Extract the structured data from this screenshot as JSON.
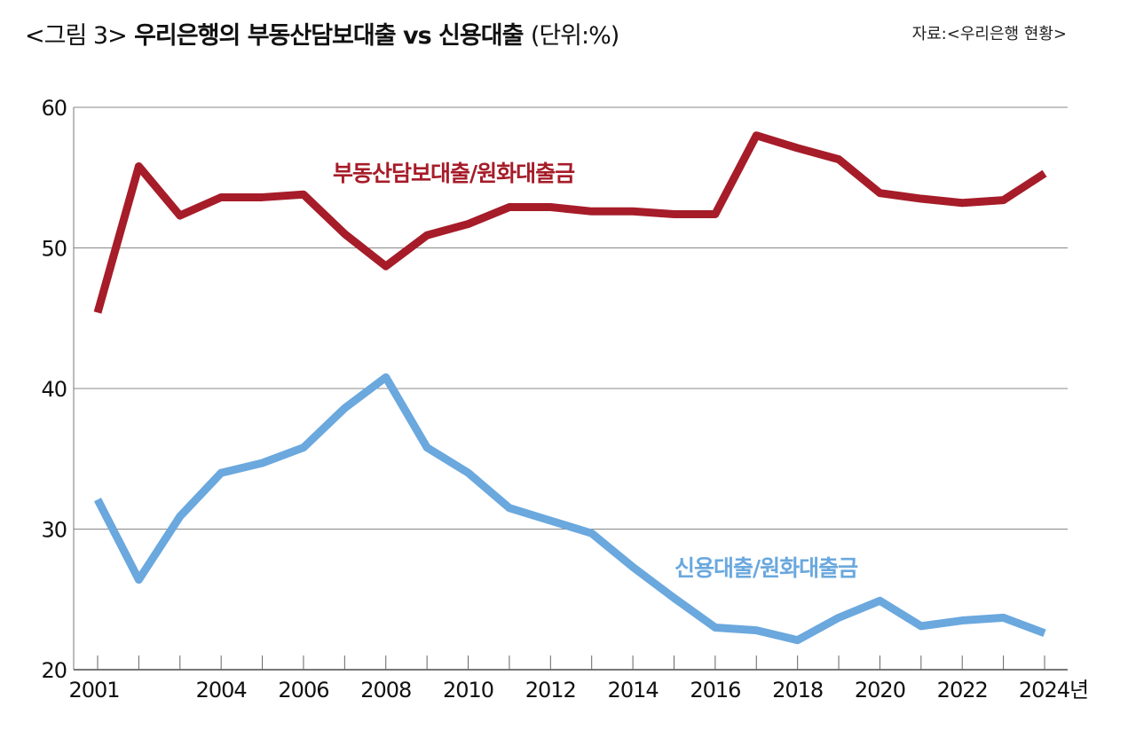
{
  "title": {
    "prefix": "<그림 3>",
    "main": "우리은행의 부동산담보대출 vs 신용대출",
    "unit": "(단위:%)"
  },
  "source": "자료:<우리은행 현황>",
  "chart_data": {
    "type": "line",
    "title": "우리은행의 부동산담보대출 vs 신용대출",
    "ylabel": "",
    "xlabel": "",
    "x_unit_suffix": "년",
    "ylim": [
      20,
      60
    ],
    "y_ticks": [
      20,
      30,
      40,
      50,
      60
    ],
    "x_tick_labels": [
      "2001",
      "2004",
      "2006",
      "2008",
      "2010",
      "2012",
      "2014",
      "2016",
      "2018",
      "2020",
      "2022",
      "2024년"
    ],
    "grid": true,
    "x": [
      2001,
      2002,
      2003,
      2004,
      2005,
      2006,
      2007,
      2008,
      2009,
      2010,
      2011,
      2012,
      2013,
      2014,
      2015,
      2016,
      2017,
      2018,
      2019,
      2020,
      2021,
      2022,
      2023,
      2024
    ],
    "series": [
      {
        "name": "부동산담보대출/원화대출금",
        "color": "#a61c29",
        "values": [
          45.4,
          55.8,
          52.3,
          53.6,
          53.6,
          53.8,
          51.0,
          48.7,
          50.9,
          51.7,
          52.9,
          52.9,
          52.6,
          52.6,
          52.4,
          52.4,
          58.0,
          57.1,
          56.3,
          53.9,
          53.5,
          53.2,
          53.4,
          55.3
        ]
      },
      {
        "name": "신용대출/원화대출금",
        "color": "#6aa8de",
        "values": [
          32.1,
          26.4,
          30.9,
          34.0,
          34.7,
          35.8,
          38.6,
          40.8,
          35.8,
          34.0,
          31.5,
          30.6,
          29.7,
          27.3,
          25.1,
          23.0,
          22.8,
          22.1,
          23.7,
          24.9,
          23.1,
          23.5,
          23.7,
          22.6
        ]
      }
    ]
  }
}
